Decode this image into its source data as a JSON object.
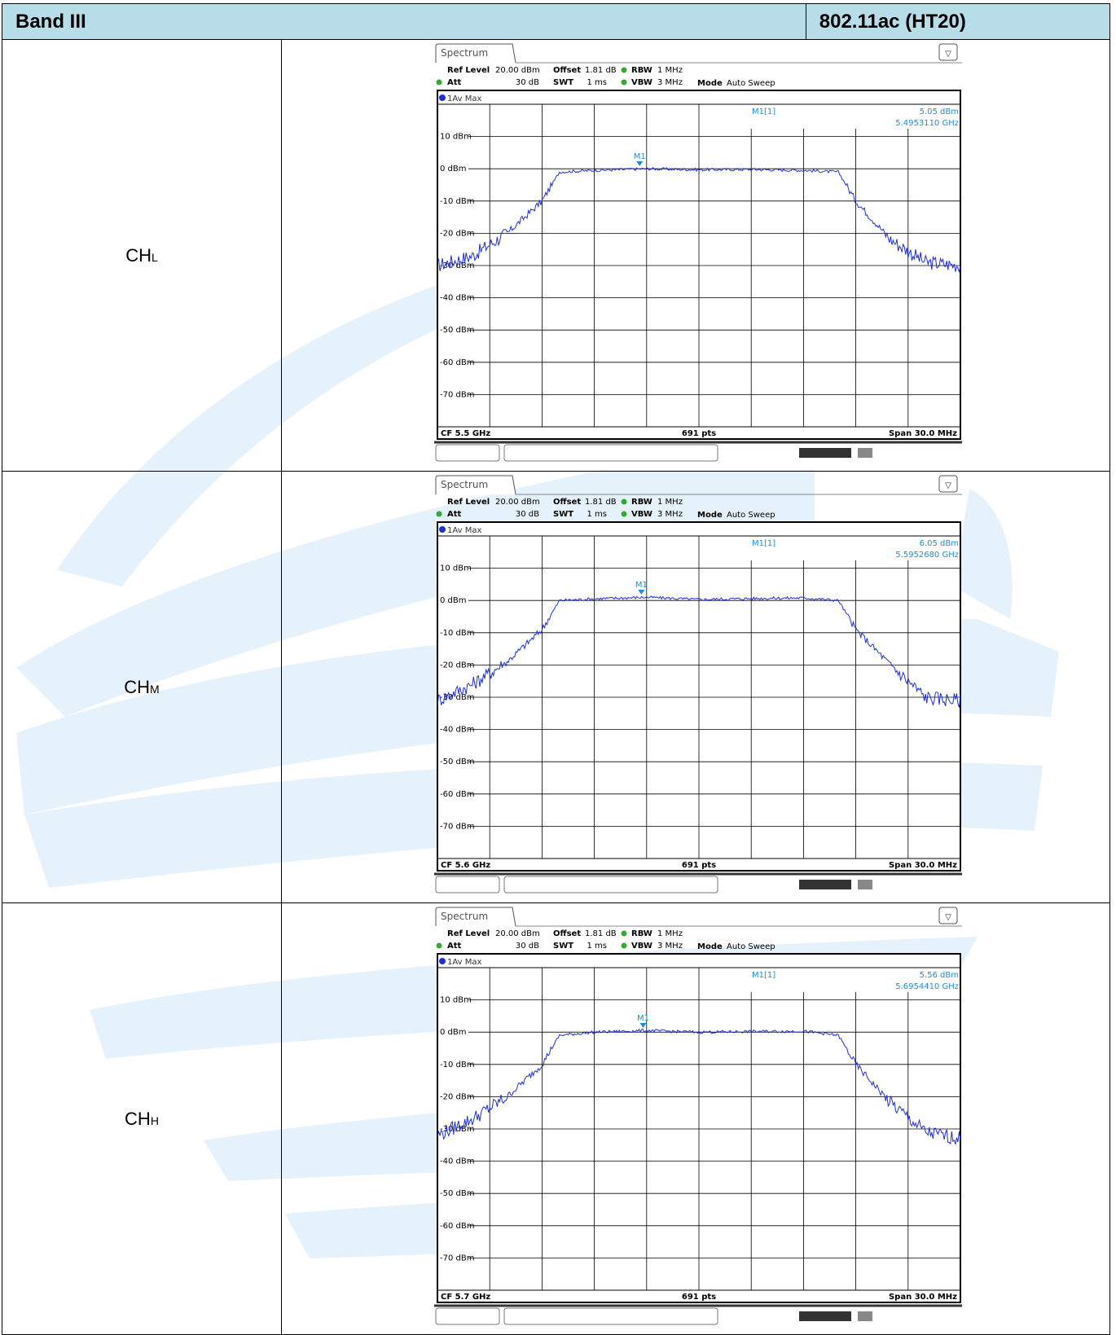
{
  "header": {
    "band": "Band III",
    "mode": "802.11ac (HT20)"
  },
  "plots": [
    {
      "channel": "CH",
      "sub": "L",
      "tab": "Spectrum",
      "ref_level": "20.00 dBm",
      "offset": "1.81 dB",
      "rbw": "1 MHz",
      "att": "30 dB",
      "swt": "1 ms",
      "vbw": "3 MHz",
      "mode": "Auto Sweep",
      "trace": "1Av Max",
      "marker_name": "M1[1]",
      "marker_level": "5.05 dBm",
      "marker_freq": "5.4953110 GHz",
      "cf": "CF 5.5 GHz",
      "pts": "691 pts",
      "span": "Span 30.0 MHz"
    },
    {
      "channel": "CH",
      "sub": "M",
      "tab": "Spectrum",
      "ref_level": "20.00 dBm",
      "offset": "1.81 dB",
      "rbw": "1 MHz",
      "att": "30 dB",
      "swt": "1 ms",
      "vbw": "3 MHz",
      "mode": "Auto Sweep",
      "trace": "1Av Max",
      "marker_name": "M1[1]",
      "marker_level": "6.05 dBm",
      "marker_freq": "5.5952680 GHz",
      "cf": "CF 5.6 GHz",
      "pts": "691 pts",
      "span": "Span 30.0 MHz"
    },
    {
      "channel": "CH",
      "sub": "H",
      "tab": "Spectrum",
      "ref_level": "20.00 dBm",
      "offset": "1.81 dB",
      "rbw": "1 MHz",
      "att": "30 dB",
      "swt": "1 ms",
      "vbw": "3 MHz",
      "mode": "Auto Sweep",
      "trace": "1Av Max",
      "marker_name": "M1[1]",
      "marker_level": "5.56 dBm",
      "marker_freq": "5.6954410 GHz",
      "cf": "CF 5.7 GHz",
      "pts": "691 pts",
      "span": "Span 30.0 MHz"
    }
  ],
  "chart_data": [
    {
      "type": "line",
      "title": "",
      "y_ticks": [
        "10 dBm",
        "0 dBm",
        "-10 dBm",
        "-20 dBm",
        "-30 dBm",
        "-40 dBm",
        "-50 dBm",
        "-60 dBm",
        "-70 dBm"
      ],
      "ylim": [
        -80,
        20
      ],
      "xlim_mhz": [
        -15,
        15
      ],
      "grid": true,
      "series": [
        {
          "x": [
            -15,
            -13,
            -11,
            -9,
            -8,
            -6,
            -3,
            0,
            3,
            6,
            8,
            9,
            11,
            13,
            15
          ],
          "y": [
            -30,
            -27,
            -20,
            -10,
            -1,
            -0.5,
            0,
            -0.3,
            -0.2,
            -0.5,
            -1,
            -10,
            -22,
            -29,
            -30
          ]
        }
      ],
      "marker": {
        "x": -3.4,
        "y": 5.05
      }
    },
    {
      "type": "line",
      "title": "",
      "y_ticks": [
        "10 dBm",
        "0 dBm",
        "-10 dBm",
        "-20 dBm",
        "-30 dBm",
        "-40 dBm",
        "-50 dBm",
        "-60 dBm",
        "-70 dBm"
      ],
      "ylim": [
        -80,
        20
      ],
      "xlim_mhz": [
        -15,
        15
      ],
      "grid": true,
      "series": [
        {
          "x": [
            -15,
            -13,
            -11,
            -9,
            -8,
            -6,
            -3,
            0,
            3,
            6,
            8,
            9,
            11,
            13,
            15
          ],
          "y": [
            -31,
            -26,
            -19,
            -9,
            0,
            0.5,
            1,
            0.3,
            0.6,
            0.8,
            0,
            -9,
            -20,
            -30,
            -31
          ]
        }
      ],
      "marker": {
        "x": -3.3,
        "y": 6.05
      }
    },
    {
      "type": "line",
      "title": "",
      "y_ticks": [
        "10 dBm",
        "0 dBm",
        "-10 dBm",
        "-20 dBm",
        "-30 dBm",
        "-40 dBm",
        "-50 dBm",
        "-60 dBm",
        "-70 dBm"
      ],
      "ylim": [
        -80,
        20
      ],
      "xlim_mhz": [
        -15,
        15
      ],
      "grid": true,
      "series": [
        {
          "x": [
            -15,
            -13,
            -11,
            -9,
            -8,
            -6,
            -3,
            0,
            3,
            6,
            8,
            9,
            11,
            13,
            15
          ],
          "y": [
            -32,
            -27,
            -20,
            -10,
            -1,
            0,
            0.5,
            0,
            0.2,
            0.3,
            -1,
            -10,
            -22,
            -31,
            -33
          ]
        }
      ],
      "marker": {
        "x": -3.2,
        "y": 5.56
      }
    }
  ],
  "colors": {
    "header_bg": "#b7dde8",
    "trace": "#1f2fd6",
    "marker": "#1a8fd6",
    "watermark": "#e3f1fb"
  }
}
